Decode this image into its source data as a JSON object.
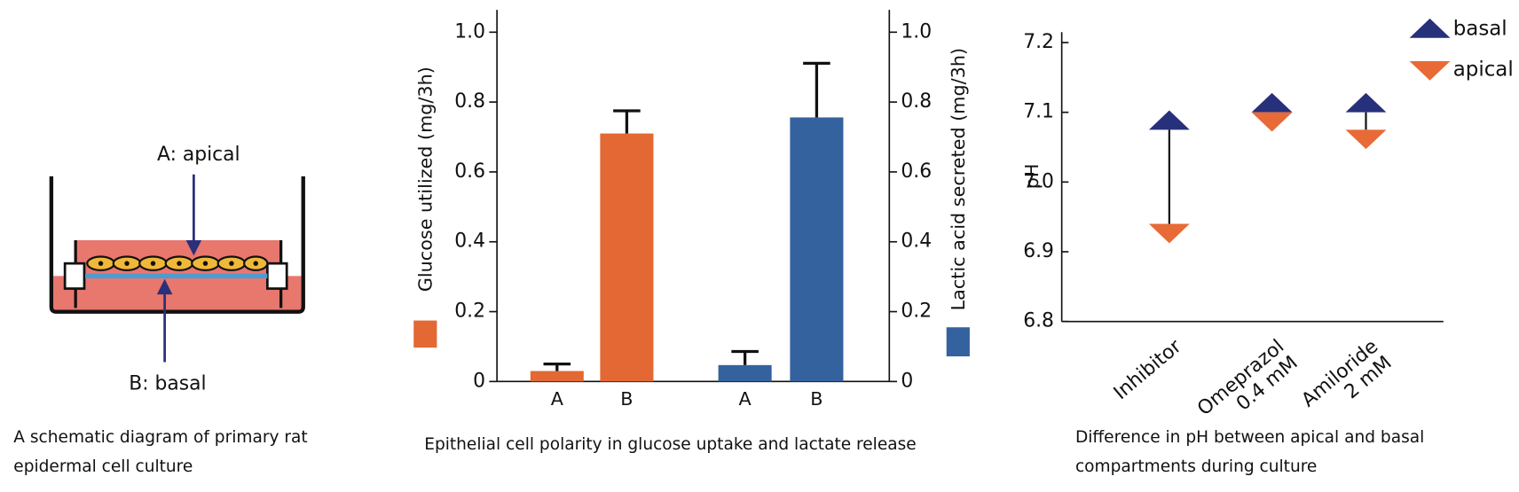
{
  "diagram": {
    "label_a": "A: apical",
    "label_b": "B: basal",
    "caption": "A schematic diagram of primary rat epidermal cell culture"
  },
  "chart_data": [
    {
      "type": "bar",
      "caption": "Epithelial cell polarity in glucose uptake and lactate release",
      "categories": [
        "A",
        "B",
        "A",
        "B"
      ],
      "ylabel": "Glucose utilized (mg/3h)",
      "y2label": "Lactic acid secreted (mg/3h)",
      "series": [
        {
          "color": "#e36833",
          "values": [
            0.03,
            0.71,
            null,
            null
          ],
          "errors": [
            0.02,
            0.065,
            null,
            null
          ]
        },
        {
          "color": "#33629e",
          "axis": "y2",
          "values": [
            null,
            null,
            0.047,
            0.756
          ],
          "errors": [
            null,
            null,
            0.039,
            0.155
          ]
        }
      ],
      "ylim": [
        0,
        1.064
      ],
      "yticks": [
        0,
        0.2,
        0.4,
        0.6,
        0.8,
        {
          "value": 1,
          "label": "1.0"
        }
      ],
      "y2lim": [
        0,
        1.064
      ],
      "y2ticks": [
        0,
        0.2,
        0.4,
        0.6,
        0.8,
        {
          "value": 1,
          "label": "1.0"
        }
      ]
    },
    {
      "type": "range-markers",
      "caption": "Difference in pH between apical and basal compartments during culture",
      "ylabel": "pH",
      "categories": [
        "Inhibitor",
        "Omeprazol\n0.4 mM",
        "Amiloride\n2 mM"
      ],
      "series": [
        {
          "name": "basal",
          "color": "#27307a",
          "marker": "triangle-up",
          "values": [
            7.075,
            7.1,
            7.1
          ]
        },
        {
          "name": "apical",
          "color": "#e86a36",
          "marker": "triangle-down",
          "values": [
            6.94,
            7.1,
            7.075
          ]
        }
      ],
      "ylim": [
        6.8,
        7.215
      ],
      "yticks": [
        6.8,
        6.9,
        {
          "value": 7,
          "label": "7.0"
        },
        7.1,
        7.2
      ],
      "legend": "upper right"
    }
  ]
}
